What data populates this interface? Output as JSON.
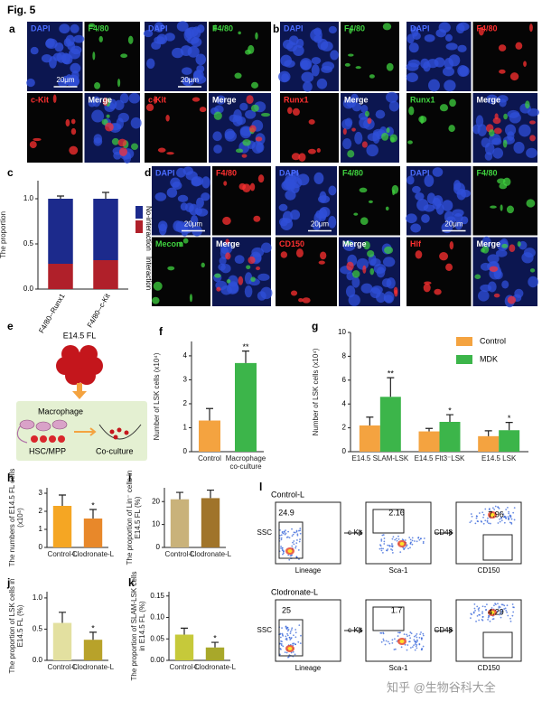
{
  "figure_title": "Fig. 5",
  "watermark": "知乎 @生物谷科大全",
  "image_panels": [
    {
      "panel": "a",
      "groups": [
        {
          "tiles": [
            "DAPI",
            "F4/80",
            "c-Kit",
            "Merge"
          ],
          "colors": [
            "#4a6cff",
            "#3fd23f",
            "#ff3030",
            "#ffffff"
          ],
          "scale": "20μm"
        },
        {
          "tiles": [
            "DAPI",
            "F4/80",
            "c-Kit",
            "Merge"
          ],
          "colors": [
            "#4a6cff",
            "#3fd23f",
            "#ff3030",
            "#ffffff"
          ],
          "scale": "20μm"
        }
      ]
    },
    {
      "panel": "b",
      "groups": [
        {
          "tiles": [
            "DAPI",
            "F4/80",
            "Runx1",
            "Merge"
          ],
          "colors": [
            "#4a6cff",
            "#3fd23f",
            "#ff3030",
            "#ffffff"
          ]
        },
        {
          "tiles": [
            "DAPI",
            "F4/80",
            "Runx1",
            "Merge"
          ],
          "colors": [
            "#4a6cff",
            "#ff3030",
            "#3fd23f",
            "#ffffff"
          ]
        }
      ]
    },
    {
      "panel": "d",
      "groups": [
        {
          "tiles": [
            "DAPI",
            "F4/80",
            "Mecom",
            "Merge"
          ],
          "colors": [
            "#4a6cff",
            "#ff3030",
            "#3fd23f",
            "#ffffff"
          ],
          "scale": "20μm"
        },
        {
          "tiles": [
            "DAPI",
            "F4/80",
            "CD150",
            "Merge"
          ],
          "colors": [
            "#4a6cff",
            "#3fd23f",
            "#ff3030",
            "#ffffff"
          ],
          "scale": "20μm"
        },
        {
          "tiles": [
            "DAPI",
            "F4/80",
            "Hlf",
            "Merge"
          ],
          "colors": [
            "#4a6cff",
            "#3fd23f",
            "#ff3030",
            "#ffffff"
          ],
          "scale": "20μm"
        }
      ]
    }
  ],
  "diagram": {
    "panel": "e",
    "source": "E14.5 FL",
    "cell1": "Macrophage",
    "cell2": "HSC/MPP",
    "target": "Co-culture"
  },
  "flow": {
    "panel": "l",
    "rows": [
      {
        "name": "Control-L",
        "gates": [
          24.9,
          2.16,
          7.96
        ],
        "axes": [
          [
            "SSC",
            "Lineage"
          ],
          [
            "c-Kit",
            "Sca-1"
          ],
          [
            "CD48",
            "CD150"
          ]
        ]
      },
      {
        "name": "Clodronate-L",
        "gates": [
          25,
          1.7,
          4.29
        ],
        "axes": [
          [
            "SSC",
            "Lineage"
          ],
          [
            "c-Kit",
            "Sca-1"
          ],
          [
            "CD48",
            "CD150"
          ]
        ]
      }
    ]
  },
  "chart_data": [
    {
      "type": "bar",
      "panel": "c",
      "ylabel": "The proportion",
      "stacked": true,
      "legend": "right",
      "categories": [
        "F4/80--Runx1",
        "F4/80--c-Kit"
      ],
      "ylim": [
        0,
        1.2
      ],
      "yticks": [
        {
          "value": 0,
          "label": "0.0"
        },
        {
          "value": 0.5,
          "label": "0.5"
        },
        {
          "value": 1,
          "label": "1.0"
        }
      ],
      "series": [
        {
          "name": "Interaction",
          "color": "#b0202a",
          "values": [
            0.28,
            0.32
          ],
          "errors": [
            0.02,
            0.06
          ]
        },
        {
          "name": "No-interaction",
          "color": "#1c2a8c",
          "values": [
            0.72,
            0.68
          ],
          "errors": [
            0.03,
            0.07
          ]
        }
      ]
    },
    {
      "type": "bar",
      "panel": "f",
      "ylabel": "Number of LSK cells (x10⁴)",
      "categories": [
        "Control",
        "Macrophage co-culture"
      ],
      "values": [
        1.3,
        3.7
      ],
      "errors": [
        0.5,
        0.5
      ],
      "colors": [
        "#f4a340",
        "#3cb54a"
      ],
      "annotations": [
        null,
        "**"
      ],
      "ylim": [
        0,
        4.6
      ],
      "yticks": [
        0,
        1,
        2,
        3,
        4
      ]
    },
    {
      "type": "bar",
      "panel": "g",
      "ylabel": "Number of LSK cells (x10⁴)",
      "legend": "top-right",
      "categories": [
        "E14.5 SLAM-LSK",
        "E14.5 Flt3⁻LSK",
        "E14.5 LSK"
      ],
      "ylim": [
        0,
        10
      ],
      "yticks": [
        0,
        2,
        4,
        6,
        8,
        10
      ],
      "series": [
        {
          "name": "Control",
          "color": "#f4a340",
          "values": [
            2.2,
            1.7,
            1.3
          ],
          "errors": [
            0.7,
            0.25,
            0.45
          ]
        },
        {
          "name": "MDK",
          "color": "#3cb54a",
          "values": [
            4.6,
            2.5,
            1.8
          ],
          "errors": [
            1.6,
            0.6,
            0.65
          ],
          "annotations": [
            "**",
            "*",
            "*"
          ]
        }
      ]
    },
    {
      "type": "bar",
      "panel": "h",
      "ylabel": "The numbers of E14.5 FL cells (x10⁴)",
      "categories": [
        "Control-L",
        "Clodronate-L"
      ],
      "values": [
        2.3,
        1.6
      ],
      "errors": [
        0.6,
        0.5
      ],
      "colors": [
        "#f5a623",
        "#e8882a"
      ],
      "annotations": [
        null,
        "*"
      ],
      "ylim": [
        0,
        3.3
      ],
      "yticks": [
        0,
        1,
        2,
        3
      ]
    },
    {
      "type": "bar",
      "panel": "i",
      "ylabel": "The proportion of Lin⁻ cells in E14.5 FL (%)",
      "categories": [
        "Control-L",
        "Clodronate-L"
      ],
      "values": [
        21,
        21.5
      ],
      "errors": [
        3,
        3.5
      ],
      "colors": [
        "#c9b27a",
        "#a0742a"
      ],
      "ylim": [
        0,
        26
      ],
      "yticks": [
        0,
        10,
        20
      ]
    },
    {
      "type": "bar",
      "panel": "j",
      "ylabel": "The proportion of LSK cells in E14.5 FL (%)",
      "categories": [
        "Control-L",
        "Clodronate-L"
      ],
      "values": [
        0.6,
        0.33
      ],
      "errors": [
        0.17,
        0.12
      ],
      "colors": [
        "#e3e0a0",
        "#b8a22a"
      ],
      "annotations": [
        null,
        "*"
      ],
      "ylim": [
        0,
        1.1
      ],
      "yticks": [
        {
          "value": 0,
          "label": "0.0"
        },
        {
          "value": 0.5,
          "label": "0.5"
        },
        {
          "value": 1,
          "label": "1.0"
        }
      ]
    },
    {
      "type": "bar",
      "panel": "k",
      "ylabel": "The proportion of SLAM-LSK cells in E14.5 FL (%)",
      "categories": [
        "Control-L",
        "Clodronate-L"
      ],
      "values": [
        0.06,
        0.03
      ],
      "errors": [
        0.015,
        0.012
      ],
      "colors": [
        "#c6c93a",
        "#a8a82a"
      ],
      "annotations": [
        null,
        "*"
      ],
      "ylim": [
        0,
        0.16
      ],
      "yticks": [
        {
          "value": 0,
          "label": "0.00"
        },
        {
          "value": 0.05,
          "label": "0.05"
        },
        {
          "value": 0.1,
          "label": "0.10"
        },
        {
          "value": 0.15,
          "label": "0.15"
        }
      ]
    }
  ]
}
